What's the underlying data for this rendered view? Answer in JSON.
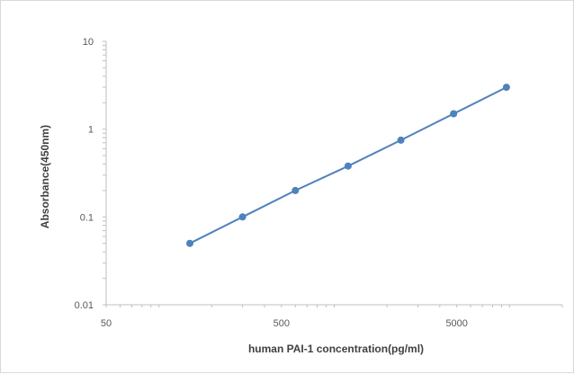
{
  "chart_data": {
    "type": "line",
    "title": "",
    "xlabel": "human PAI-1 concentration(pg/ml)",
    "ylabel": "Absorbance(450nm)",
    "x_scale": "log",
    "y_scale": "log",
    "xlim": [
      50,
      20000
    ],
    "ylim": [
      0.01,
      10
    ],
    "x_ticks": [
      "50",
      "500",
      "5000"
    ],
    "y_ticks": [
      "10",
      "1",
      "0.1",
      "0.01"
    ],
    "grid": false,
    "legend": "none",
    "series": [
      {
        "color": "#4f81bd",
        "x": [
          150,
          300,
          600,
          1200,
          2400,
          4800,
          9600
        ],
        "y": [
          0.05,
          0.1,
          0.2,
          0.38,
          0.75,
          1.5,
          3.0
        ]
      }
    ]
  }
}
